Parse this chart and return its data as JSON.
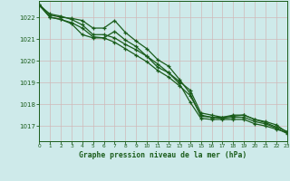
{
  "title": "Graphe pression niveau de la mer (hPa)",
  "background_color": "#ceeaea",
  "grid_color": "#b8d8d8",
  "line_color": "#1a5c1a",
  "xlim": [
    0,
    23
  ],
  "ylim": [
    1016.3,
    1022.75
  ],
  "yticks": [
    1017,
    1018,
    1019,
    1020,
    1021,
    1022
  ],
  "xticks": [
    0,
    1,
    2,
    3,
    4,
    5,
    6,
    7,
    8,
    9,
    10,
    11,
    12,
    13,
    14,
    15,
    16,
    17,
    18,
    19,
    20,
    21,
    22,
    23
  ],
  "series": [
    [
      1022.6,
      1022.0,
      1021.9,
      1021.7,
      1021.2,
      1021.05,
      1021.05,
      1021.35,
      1020.95,
      1020.65,
      1020.2,
      1019.7,
      1019.45,
      1018.95,
      1018.1,
      1017.35,
      1017.3,
      1017.3,
      1017.3,
      1017.3,
      1017.1,
      1017.0,
      1016.85,
      1016.7
    ],
    [
      1022.6,
      1022.1,
      1022.0,
      1021.95,
      1021.85,
      1021.5,
      1021.5,
      1021.85,
      1021.3,
      1020.9,
      1020.55,
      1020.05,
      1019.75,
      1019.15,
      1018.5,
      1017.45,
      1017.4,
      1017.4,
      1017.5,
      1017.5,
      1017.3,
      1017.15,
      1016.95,
      1016.75
    ],
    [
      1022.55,
      1022.0,
      1021.9,
      1021.75,
      1021.5,
      1021.1,
      1021.05,
      1020.85,
      1020.55,
      1020.25,
      1019.95,
      1019.55,
      1019.25,
      1018.85,
      1018.4,
      1017.5,
      1017.4,
      1017.35,
      1017.4,
      1017.4,
      1017.2,
      1017.1,
      1016.9,
      1016.65
    ],
    [
      1022.55,
      1022.15,
      1022.05,
      1021.9,
      1021.65,
      1021.2,
      1021.2,
      1021.05,
      1020.75,
      1020.5,
      1020.2,
      1019.85,
      1019.45,
      1019.05,
      1018.65,
      1017.6,
      1017.5,
      1017.4,
      1017.45,
      1017.5,
      1017.3,
      1017.2,
      1017.05,
      1016.7
    ]
  ]
}
